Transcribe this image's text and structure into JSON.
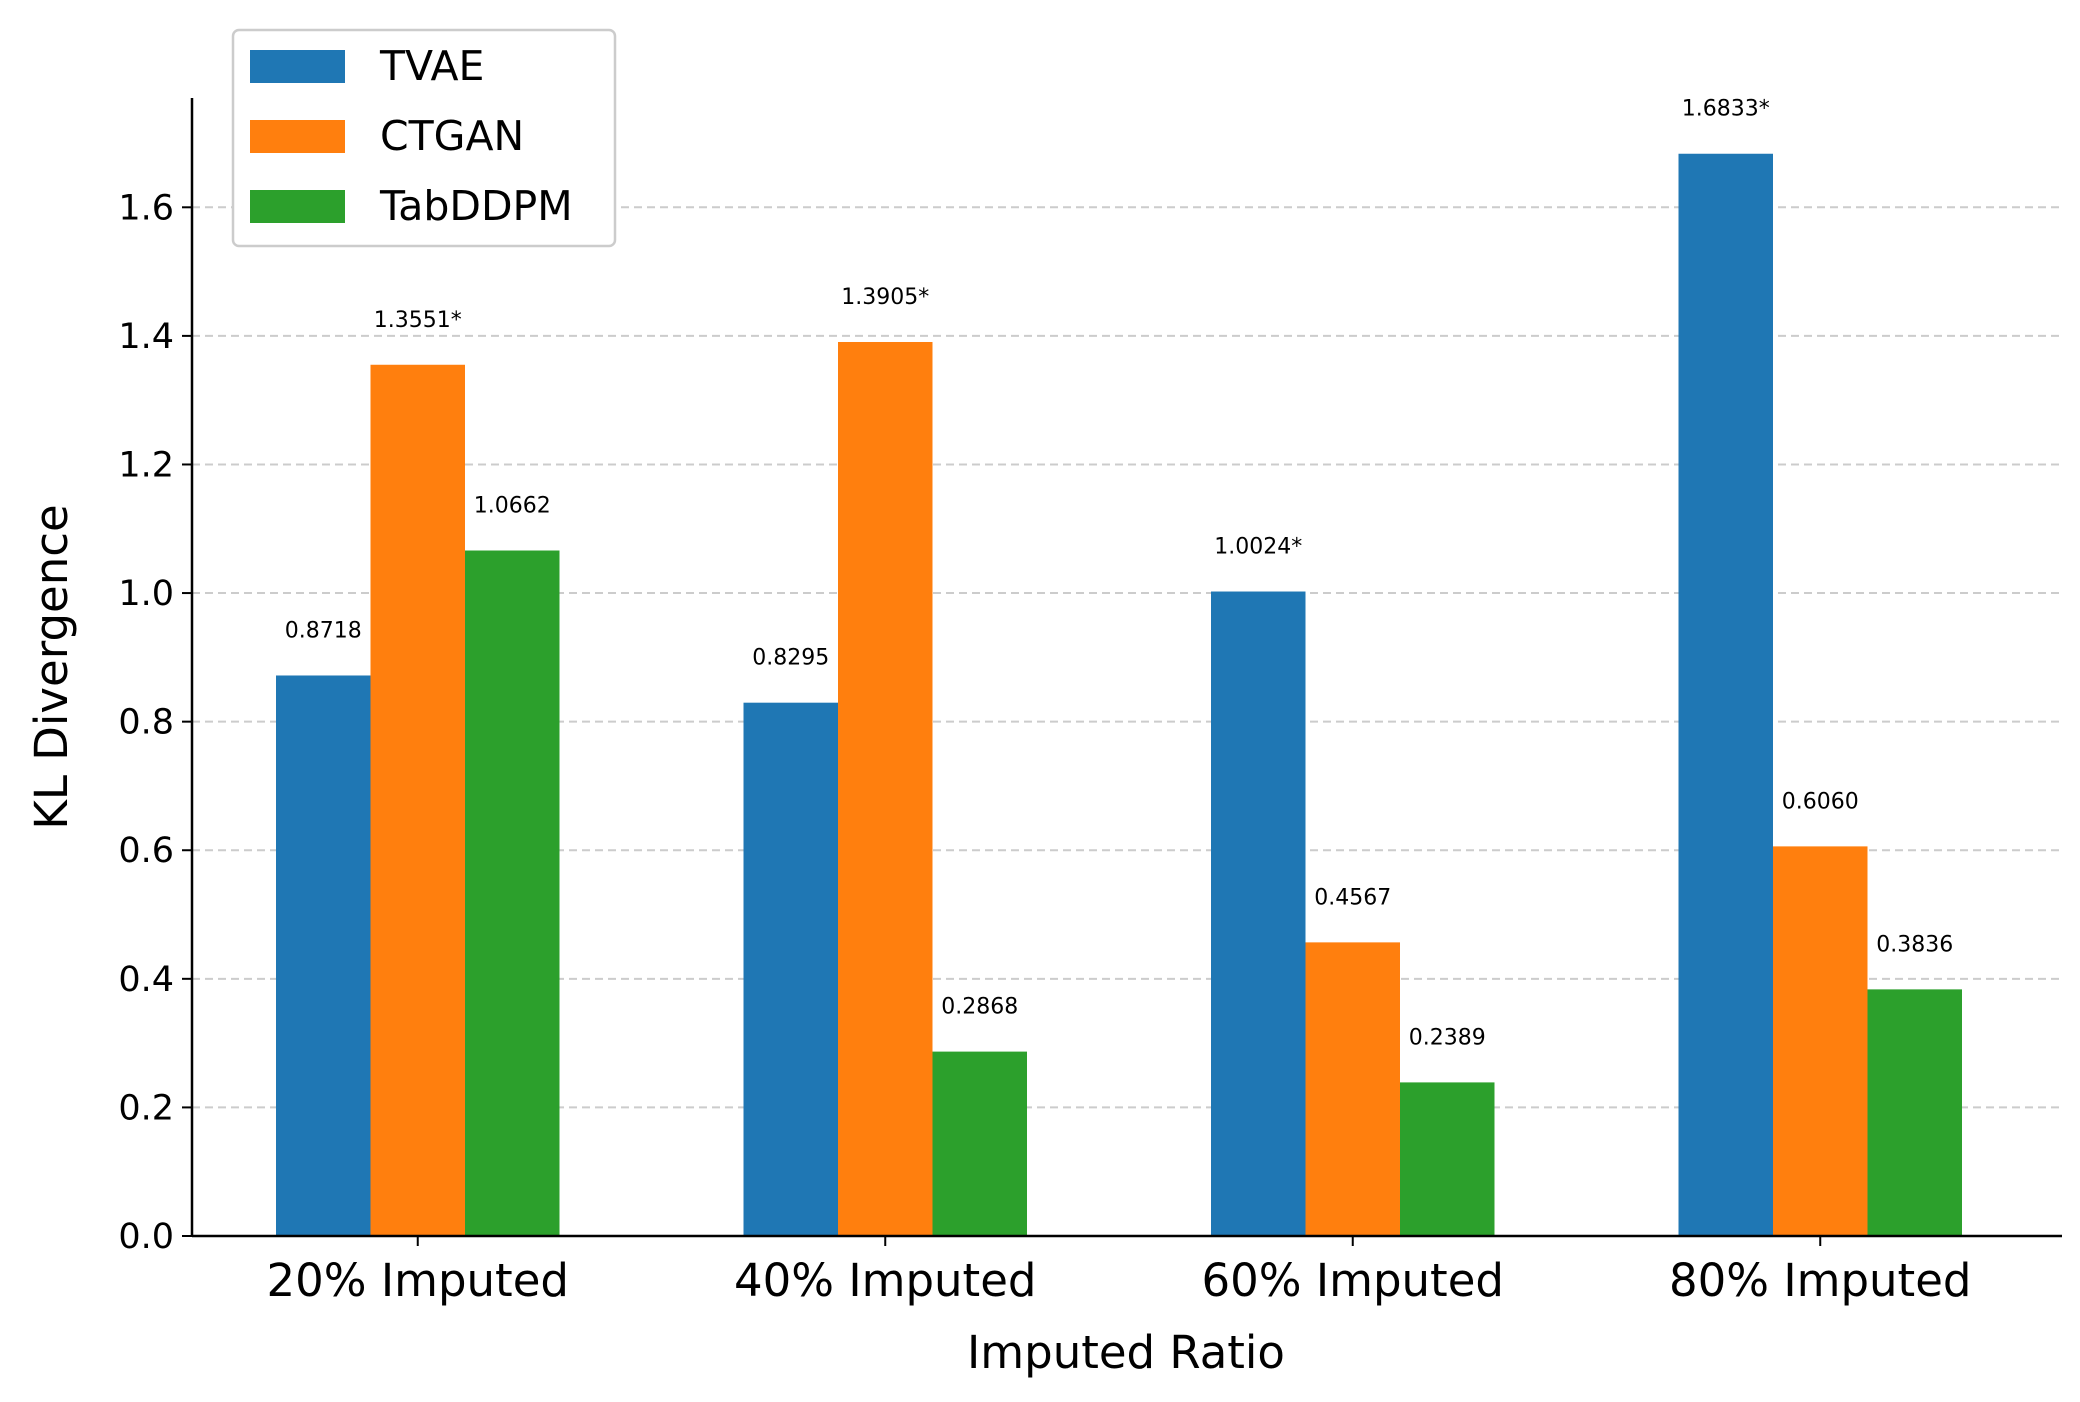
{
  "chart_data": {
    "type": "bar",
    "title": "",
    "xlabel": "Imputed Ratio",
    "ylabel": "KL Divergence",
    "categories": [
      "20% Imputed",
      "40% Imputed",
      "60% Imputed",
      "80% Imputed"
    ],
    "series": [
      {
        "name": "TVAE",
        "color": "#1f77b4",
        "values": [
          0.8718,
          0.8295,
          1.0024,
          1.6833
        ],
        "labels": [
          "0.8718",
          "0.8295",
          "1.0024*",
          "1.6833*"
        ]
      },
      {
        "name": "CTGAN",
        "color": "#ff7f0e",
        "values": [
          1.3551,
          1.3905,
          0.4567,
          0.606
        ],
        "labels": [
          "1.3551*",
          "1.3905*",
          "0.4567",
          "0.6060"
        ]
      },
      {
        "name": "TabDDPM",
        "color": "#2ca02c",
        "values": [
          1.0662,
          0.2868,
          0.2389,
          0.3836
        ],
        "labels": [
          "1.0662",
          "0.2868",
          "0.2389",
          "0.3836"
        ]
      }
    ],
    "ylim": [
      0,
      1.77
    ],
    "yticks": [
      0.0,
      0.2,
      0.4,
      0.6,
      0.8,
      1.0,
      1.2,
      1.4,
      1.6
    ],
    "ytick_labels": [
      "0.0",
      "0.2",
      "0.4",
      "0.6",
      "0.8",
      "1.0",
      "1.2",
      "1.4",
      "1.6"
    ],
    "grid": "y-dashed",
    "legend_position": "top-left"
  }
}
